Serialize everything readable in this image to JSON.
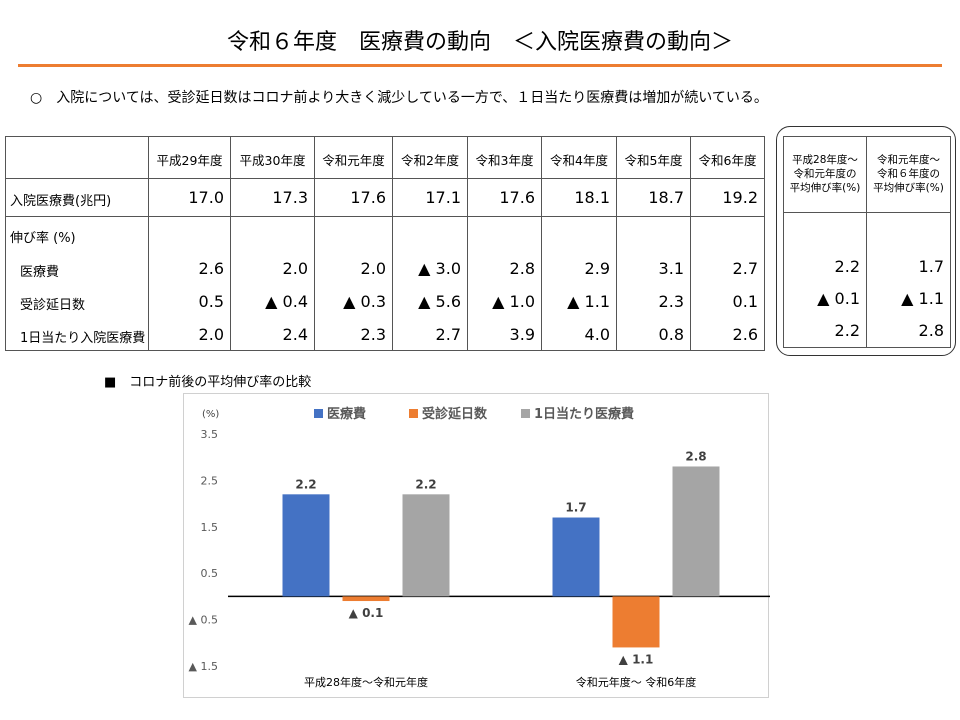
{
  "title": "令和６年度　医療費の動向　＜入院医療費の動向＞",
  "summary": "○　入院については、受診延日数はコロナ前より大きく減少している一方で、１日当たり医療費は増加が続いている。",
  "table": {
    "years": [
      "平成29年度",
      "平成30年度",
      "令和元年度",
      "令和2年度",
      "令和3年度",
      "令和4年度",
      "令和5年度",
      "令和6年度"
    ],
    "rows": [
      {
        "label": "入院医療費(兆円)",
        "values": [
          "17.0",
          "17.3",
          "17.6",
          "17.1",
          "17.6",
          "18.1",
          "18.7",
          "19.2"
        ]
      },
      {
        "label": "伸び率 (%)",
        "values": []
      },
      {
        "label": "医療費",
        "values": [
          "2.6",
          "2.0",
          "2.0",
          "▲ 3.0",
          "2.8",
          "2.9",
          "3.1",
          "2.7"
        ]
      },
      {
        "label": "受診延日数",
        "values": [
          "0.5",
          "▲ 0.4",
          "▲ 0.3",
          "▲ 5.6",
          "▲ 1.0",
          "▲ 1.1",
          "2.3",
          "0.1"
        ]
      },
      {
        "label": "1日当たり入院医療費",
        "values": [
          "2.0",
          "2.4",
          "2.3",
          "2.7",
          "3.9",
          "4.0",
          "0.8",
          "2.6"
        ]
      }
    ]
  },
  "side_table": {
    "headers": [
      [
        "平成28年度～",
        "令和元年度の",
        "平均伸び率(%)"
      ],
      [
        "令和元年度～",
        "令和６年度の",
        "平均伸び率(%)"
      ]
    ],
    "rows": [
      [
        "2.2",
        "1.7"
      ],
      [
        "▲ 0.1",
        "▲ 1.1"
      ],
      [
        "2.2",
        "2.8"
      ]
    ]
  },
  "chart_caption": "■　コロナ前後の平均伸び率の比較",
  "chart_data": {
    "type": "bar",
    "unit_label": "(%)",
    "categories": [
      "平成28年度～令和元年度",
      "令和元年度～ 令和6年度"
    ],
    "series": [
      {
        "name": "医療費",
        "color": "#4472c4",
        "values": [
          2.2,
          1.7
        ],
        "labels": [
          "2.2",
          "1.7"
        ]
      },
      {
        "name": "受診延日数",
        "color": "#ed7d31",
        "values": [
          -0.1,
          -1.1
        ],
        "labels": [
          "▲ 0.1",
          "▲ 1.1"
        ]
      },
      {
        "name": "1日当たり医療費",
        "color": "#a5a5a5",
        "values": [
          2.2,
          2.8
        ],
        "labels": [
          "2.2",
          "2.8"
        ]
      }
    ],
    "ylim": [
      -1.5,
      3.5
    ],
    "yticks": [
      3.5,
      2.5,
      1.5,
      0.5,
      -0.5,
      -1.5
    ],
    "ytick_labels": [
      "3.5",
      "2.5",
      "1.5",
      "0.5",
      "▲ 0.5",
      "▲ 1.5"
    ],
    "legend_position": "top",
    "grid": false
  }
}
